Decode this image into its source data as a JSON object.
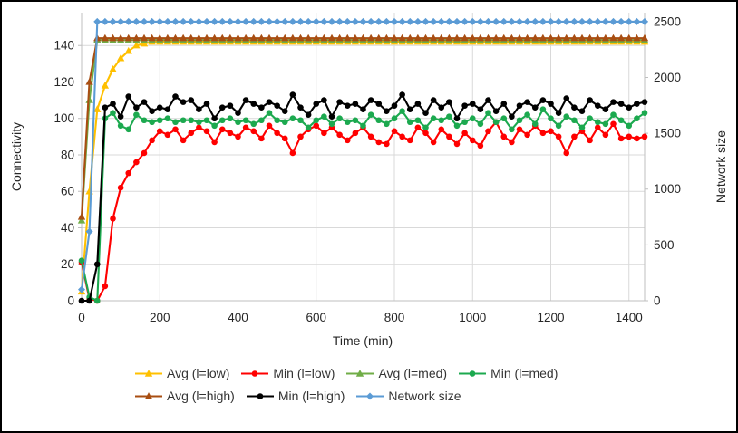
{
  "window": {
    "background": "#ffffff",
    "frame_border_color": "#000000"
  },
  "chart_data": {
    "type": "line",
    "title": "",
    "xlabel": "Time (min)",
    "ylabel_left": "Connectivity",
    "ylabel_right": "Network size",
    "x": {
      "start": 0,
      "step": 20,
      "count": 73
    },
    "xlim": [
      0,
      1440
    ],
    "x_ticks": [
      0,
      200,
      400,
      600,
      800,
      1000,
      1200,
      1400
    ],
    "ylim_left": [
      0,
      158
    ],
    "y_ticks_left": [
      0,
      20,
      40,
      60,
      80,
      100,
      120,
      140
    ],
    "ylim_right": [
      0,
      2580
    ],
    "y_ticks_right": [
      0,
      500,
      1000,
      1500,
      2000,
      2500
    ],
    "grid": true,
    "grid_color": "#d9d9d9",
    "axis_color": "#bfbfbf",
    "text_color": "#262626",
    "legend_position": "bottom",
    "legend_rows": [
      [
        0,
        1,
        2,
        3
      ],
      [
        4,
        5,
        6
      ]
    ],
    "values_pad": "repeat-last-to-count",
    "series": [
      {
        "name": "Avg (l=low)",
        "color": "#FFC000",
        "marker": "triangle",
        "axis": "left",
        "values": [
          5,
          60,
          105,
          118,
          127,
          133,
          137,
          140,
          141,
          142
        ]
      },
      {
        "name": "Min (l=low)",
        "color": "#FF0000",
        "marker": "circle",
        "axis": "left",
        "values": [
          21,
          1,
          0,
          8,
          45,
          62,
          70,
          76,
          81,
          88,
          93,
          91,
          94,
          88,
          92,
          95,
          93,
          87,
          94,
          92,
          90,
          95,
          93,
          89,
          96,
          92,
          89,
          81,
          90,
          94,
          96,
          92,
          95,
          91,
          88,
          92,
          95,
          90,
          87,
          86,
          93,
          90,
          88,
          95,
          92,
          87,
          94,
          90,
          86,
          92,
          88,
          85,
          93,
          98,
          90,
          87,
          94,
          91,
          96,
          92,
          93,
          90,
          81,
          90,
          93,
          88,
          95,
          91,
          97,
          89,
          90,
          89,
          90
        ]
      },
      {
        "name": "Avg (l=med)",
        "color": "#70AD47",
        "marker": "triangle",
        "axis": "left",
        "values": [
          44,
          110,
          143
        ]
      },
      {
        "name": "Min (l=med)",
        "color": "#1CA94F",
        "marker": "circle",
        "axis": "left",
        "values": [
          22,
          2,
          0,
          100,
          103,
          96,
          94,
          102,
          99,
          98,
          99,
          100,
          98,
          99,
          99,
          98,
          99,
          96,
          99,
          100,
          98,
          99,
          97,
          99,
          103,
          99,
          98,
          100,
          99,
          95,
          99,
          101,
          97,
          100,
          98,
          99,
          96,
          102,
          99,
          97,
          100,
          104,
          98,
          99,
          95,
          100,
          99,
          101,
          96,
          98,
          100,
          97,
          103,
          98,
          100,
          94,
          99,
          102,
          97,
          105,
          100,
          96,
          101,
          99,
          95,
          100,
          98,
          97,
          102,
          99,
          96,
          100,
          103
        ]
      },
      {
        "name": "Avg (l=high)",
        "color": "#A84E12",
        "marker": "triangle",
        "axis": "left",
        "values": [
          46,
          120,
          144
        ]
      },
      {
        "name": "Min (l=high)",
        "color": "#000000",
        "marker": "circle",
        "axis": "left",
        "values": [
          0,
          0,
          20,
          106,
          108,
          101,
          112,
          106,
          109,
          104,
          106,
          105,
          112,
          109,
          110,
          105,
          108,
          100,
          106,
          107,
          103,
          110,
          108,
          106,
          109,
          107,
          104,
          113,
          106,
          102,
          108,
          110,
          101,
          109,
          107,
          108,
          105,
          110,
          108,
          104,
          107,
          113,
          105,
          108,
          103,
          110,
          106,
          109,
          100,
          107,
          108,
          105,
          110,
          104,
          108,
          101,
          107,
          109,
          106,
          110,
          108,
          103,
          111,
          106,
          104,
          110,
          107,
          105,
          109,
          108,
          106,
          108,
          109
        ]
      },
      {
        "name": "Network size",
        "color": "#5B9BD5",
        "marker": "diamond",
        "axis": "right",
        "values": [
          100,
          620,
          2500
        ]
      }
    ]
  }
}
